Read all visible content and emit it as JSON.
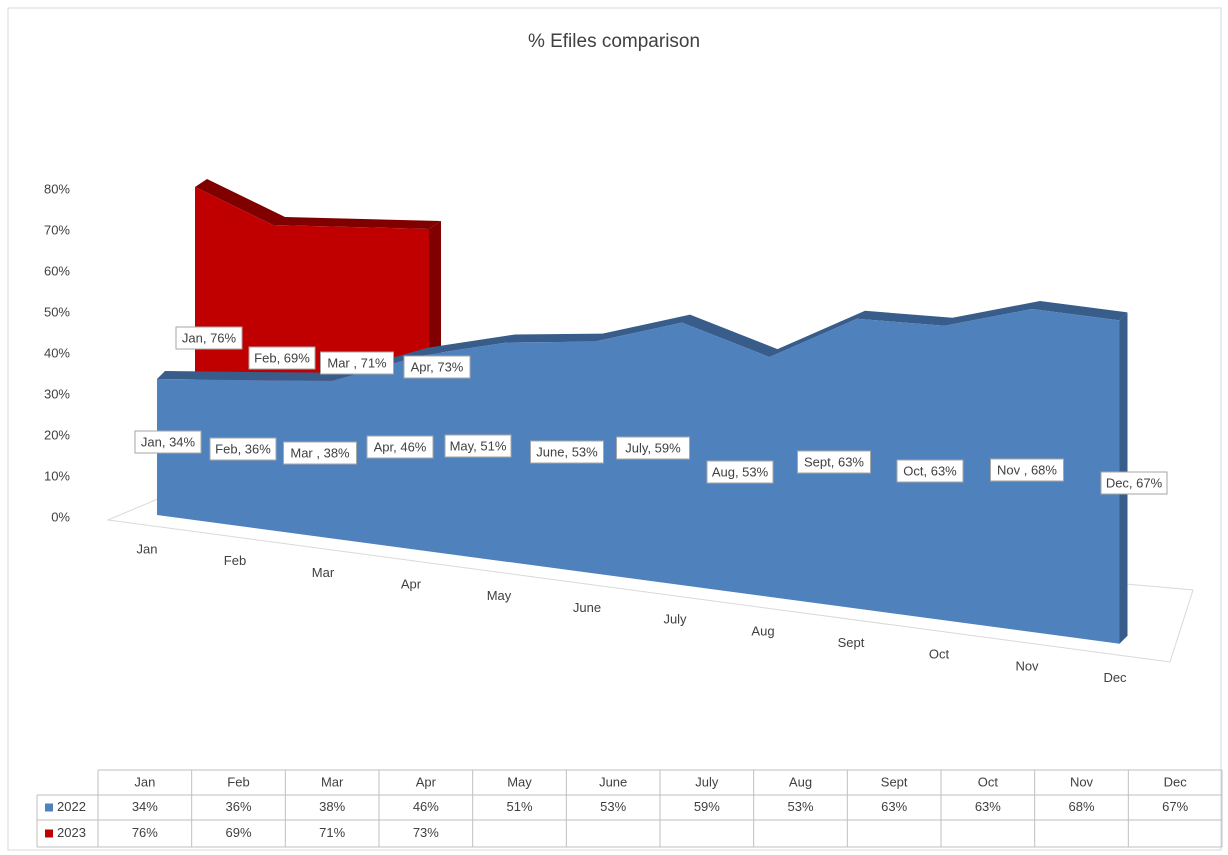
{
  "chart_data": {
    "type": "area3d",
    "title": "% Efiles comparison",
    "categories": [
      "Jan",
      "Feb",
      "Mar",
      "Apr",
      "May",
      "June",
      "July",
      "Aug",
      "Sept",
      "Oct",
      "Nov",
      "Dec"
    ],
    "ylim": [
      0,
      80
    ],
    "yticks": [
      {
        "value": 0,
        "label": "0%"
      },
      {
        "value": 10,
        "label": "10%"
      },
      {
        "value": 20,
        "label": "20%"
      },
      {
        "value": 30,
        "label": "30%"
      },
      {
        "value": 40,
        "label": "40%"
      },
      {
        "value": 50,
        "label": "50%"
      },
      {
        "value": 60,
        "label": "60%"
      },
      {
        "value": 70,
        "label": "70%"
      },
      {
        "value": 80,
        "label": "80%"
      }
    ],
    "series": [
      {
        "name": "2022",
        "color": "#4f81bd",
        "values": [
          34,
          36,
          38,
          46,
          51,
          53,
          59,
          53,
          63,
          63,
          68,
          67
        ],
        "value_labels": [
          "Jan, 34%",
          "Feb, 36%",
          "Mar , 38%",
          "Apr, 46%",
          "May, 51%",
          "June, 53%",
          "July, 59%",
          "Aug, 53%",
          "Sept, 63%",
          "Oct, 63%",
          "Nov , 68%",
          "Dec, 67%"
        ],
        "table_labels": [
          "34%",
          "36%",
          "38%",
          "46%",
          "51%",
          "53%",
          "59%",
          "53%",
          "63%",
          "63%",
          "68%",
          "67%"
        ]
      },
      {
        "name": "2023",
        "color": "#c00000",
        "values": [
          76,
          69,
          71,
          73,
          null,
          null,
          null,
          null,
          null,
          null,
          null,
          null
        ],
        "value_labels": [
          "Jan, 76%",
          "Feb, 69%",
          "Mar , 71%",
          "Apr, 73%",
          null,
          null,
          null,
          null,
          null,
          null,
          null,
          null
        ],
        "table_labels": [
          "76%",
          "69%",
          "71%",
          "73%",
          null,
          null,
          null,
          null,
          null,
          null,
          null,
          null
        ]
      }
    ]
  }
}
